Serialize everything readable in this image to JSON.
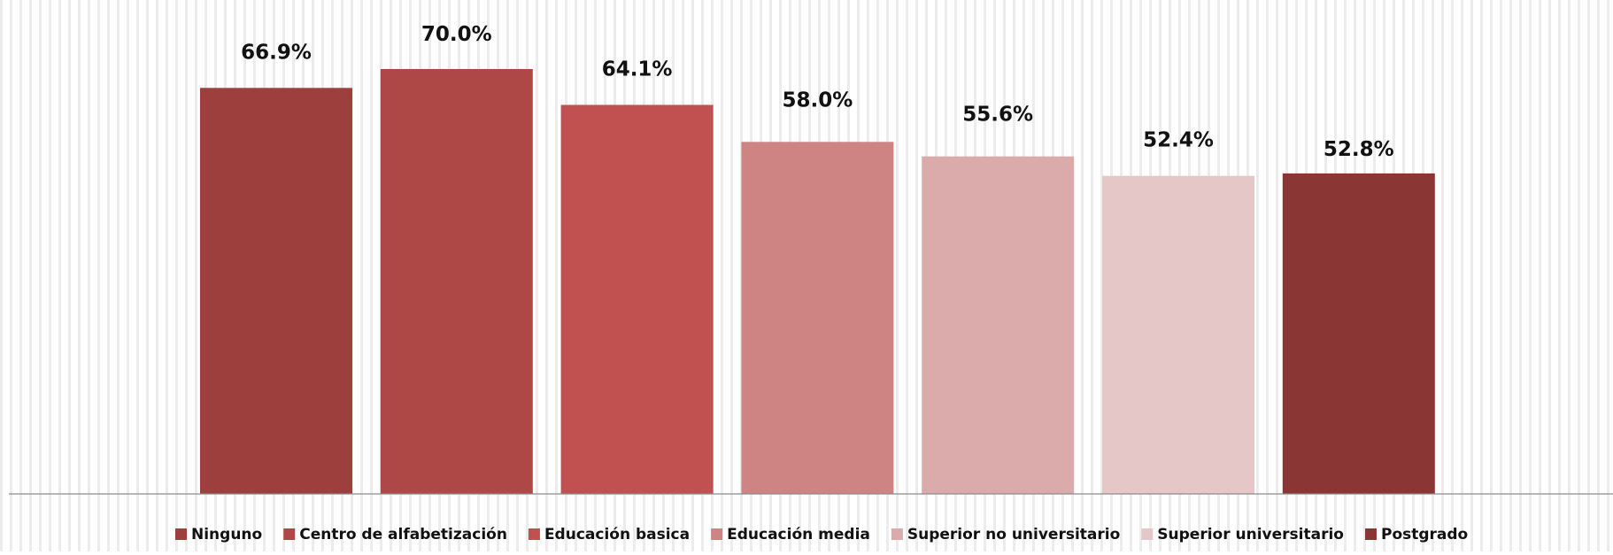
{
  "chart_data": {
    "type": "bar",
    "title": "",
    "xlabel": "",
    "ylabel": "",
    "ylim": [
      0,
      70
    ],
    "grid": false,
    "legend_position": "bottom",
    "show_data_labels": true,
    "series": [
      {
        "name": "Ninguno",
        "value": 66.9,
        "label": "66.9%",
        "color": "#9C3F3D"
      },
      {
        "name": "Centro de alfabetización",
        "value": 70.0,
        "label": "70.0%",
        "color": "#AE4846"
      },
      {
        "name": "Educación basica",
        "value": 64.1,
        "label": "64.1%",
        "color": "#C05150"
      },
      {
        "name": "Educación media",
        "value": 58.0,
        "label": "58.0%",
        "color": "#CD8482"
      },
      {
        "name": "Superior no universitario",
        "value": 55.6,
        "label": "55.6%",
        "color": "#DBAAAA"
      },
      {
        "name": "Superior universitario",
        "value": 52.4,
        "label": "52.4%",
        "color": "#E6C7C8"
      },
      {
        "name": "Postgrado",
        "value": 52.8,
        "label": "52.8%",
        "color": "#8A3634"
      }
    ]
  }
}
